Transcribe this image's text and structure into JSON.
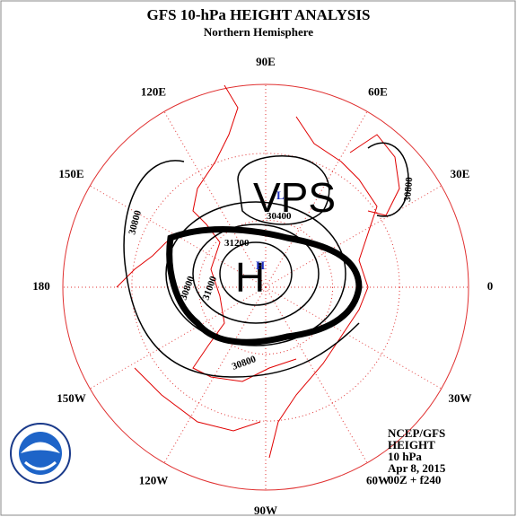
{
  "header": {
    "title": "GFS 10-hPa HEIGHT ANALYSIS",
    "subtitle": "Northern Hemisphere"
  },
  "longitude_labels": [
    "90E",
    "60E",
    "30E",
    "0",
    "30W",
    "60W",
    "90W",
    "120W",
    "150W",
    "180",
    "150E",
    "120E"
  ],
  "contour_labels": [
    "30800",
    "30800",
    "30400",
    "31200",
    "31000",
    "30800",
    "30800"
  ],
  "annotations": {
    "vps": "VPS",
    "high": "H"
  },
  "markers": {
    "high": "H",
    "low": "L"
  },
  "info": [
    "NCEP/GFS",
    "HEIGHT",
    "10 hPa",
    "Apr 8, 2015",
    "00Z + f240"
  ]
}
